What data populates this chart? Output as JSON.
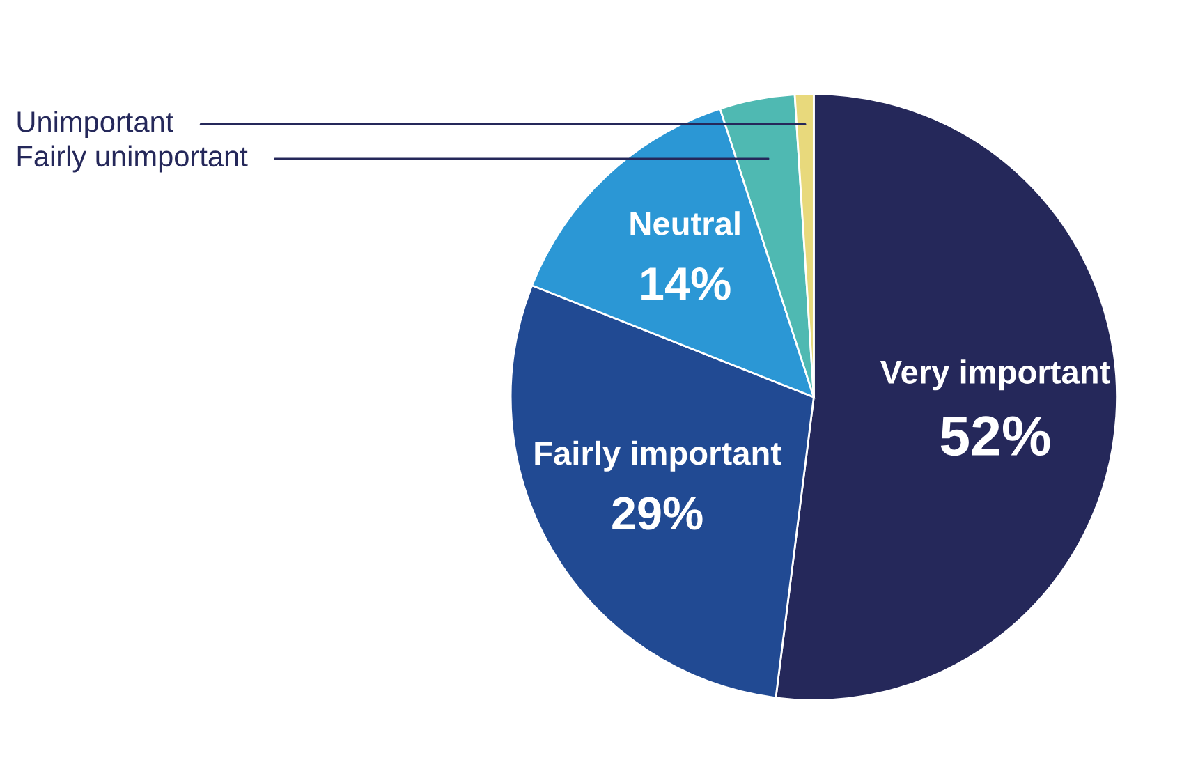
{
  "chart_data": {
    "type": "pie",
    "categories": [
      "Very important",
      "Fairly important",
      "Neutral",
      "Fairly unimportant",
      "Unimportant"
    ],
    "values": [
      52,
      29,
      14,
      4,
      1
    ],
    "colors": [
      "#25285a",
      "#214a93",
      "#2b97d5",
      "#4fb9b2",
      "#e8d97c"
    ],
    "value_labels": [
      "52%",
      "29%",
      "14%",
      null,
      null
    ]
  }
}
